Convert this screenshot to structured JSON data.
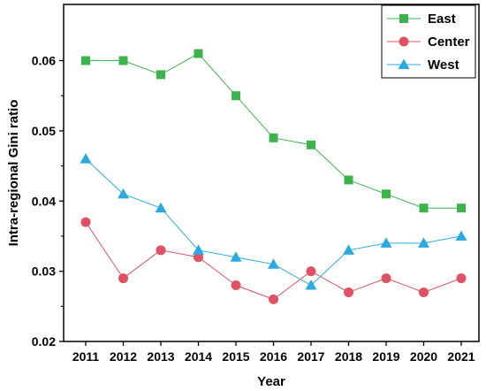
{
  "chart_data": {
    "type": "line",
    "xlabel": "Year",
    "ylabel": "Intra-regional Gini ratio",
    "ylim": [
      0.02,
      0.068
    ],
    "yticks": [
      "0.02",
      "0.03",
      "0.04",
      "0.05",
      "0.06"
    ],
    "x": [
      "2011",
      "2012",
      "2013",
      "2014",
      "2015",
      "2016",
      "2017",
      "2018",
      "2019",
      "2020",
      "2021"
    ],
    "series": [
      {
        "name": "East",
        "marker": "square",
        "color": "#3cb44b",
        "values": [
          0.06,
          0.06,
          0.058,
          0.061,
          0.055,
          0.049,
          0.048,
          0.043,
          0.041,
          0.039,
          0.039
        ]
      },
      {
        "name": "Center",
        "marker": "circle",
        "color": "#e05263",
        "values": [
          0.037,
          0.029,
          0.033,
          0.032,
          0.028,
          0.026,
          0.03,
          0.027,
          0.029,
          0.027,
          0.029
        ]
      },
      {
        "name": "West",
        "marker": "triangle",
        "color": "#29abe2",
        "values": [
          0.046,
          0.041,
          0.039,
          0.033,
          0.032,
          0.031,
          0.028,
          0.033,
          0.034,
          0.034,
          0.035
        ]
      }
    ],
    "legend": "top-right",
    "grid": false
  }
}
